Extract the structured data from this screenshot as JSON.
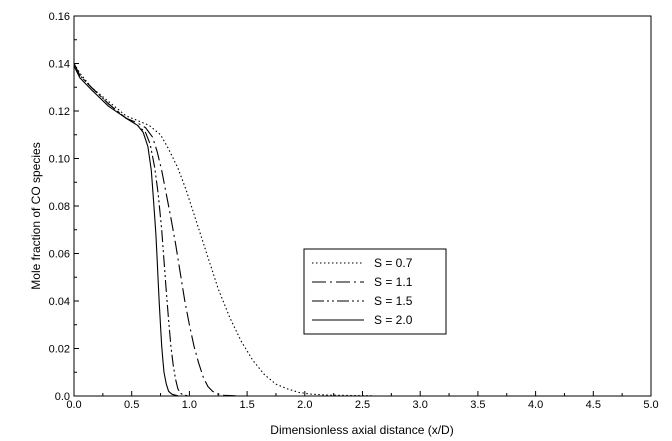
{
  "chart_data": {
    "type": "line",
    "title": "",
    "xlabel": "Dimensionless axial distance (x/D)",
    "ylabel": "Mole fraction of CO species",
    "xlim": [
      0.0,
      5.0
    ],
    "ylim": [
      0.0,
      0.16
    ],
    "x_ticks": [
      "0.0",
      "0.5",
      "1.0",
      "1.5",
      "2.0",
      "2.5",
      "3.0",
      "3.5",
      "4.0",
      "4.5",
      "5.0"
    ],
    "y_ticks": [
      "0.0",
      "0.02",
      "0.04",
      "0.06",
      "0.08",
      "0.10",
      "0.12",
      "0.14",
      "0.16"
    ],
    "grid": false,
    "legend_position": "center-right",
    "series": [
      {
        "name": "S = 0.7",
        "dash": "dotted",
        "x": [
          0.0,
          0.05,
          0.15,
          0.3,
          0.45,
          0.55,
          0.65,
          0.75,
          0.82,
          0.9,
          0.97,
          1.05,
          1.15,
          1.25,
          1.35,
          1.45,
          1.55,
          1.65,
          1.75,
          1.85,
          1.95,
          2.05,
          2.2,
          2.4,
          2.6
        ],
        "y": [
          0.14,
          0.136,
          0.13,
          0.124,
          0.118,
          0.116,
          0.114,
          0.11,
          0.104,
          0.096,
          0.087,
          0.075,
          0.06,
          0.045,
          0.033,
          0.023,
          0.015,
          0.009,
          0.005,
          0.003,
          0.0015,
          0.0008,
          0.0004,
          0.0002,
          0.0001
        ]
      },
      {
        "name": "S = 1.1",
        "dash": "dash-dot",
        "x": [
          0.0,
          0.05,
          0.15,
          0.3,
          0.45,
          0.55,
          0.62,
          0.68,
          0.72,
          0.76,
          0.8,
          0.84,
          0.88,
          0.92,
          0.96,
          1.0,
          1.04,
          1.08,
          1.12,
          1.16,
          1.2,
          1.25,
          1.3,
          1.4
        ],
        "y": [
          0.14,
          0.135,
          0.13,
          0.123,
          0.117,
          0.115,
          0.113,
          0.109,
          0.103,
          0.095,
          0.085,
          0.075,
          0.064,
          0.052,
          0.04,
          0.03,
          0.021,
          0.014,
          0.008,
          0.004,
          0.002,
          0.0008,
          0.0003,
          0.0001
        ]
      },
      {
        "name": "S = 1.5",
        "dash": "dash-dot-dot",
        "x": [
          0.0,
          0.05,
          0.15,
          0.3,
          0.45,
          0.55,
          0.62,
          0.66,
          0.7,
          0.73,
          0.76,
          0.78,
          0.8,
          0.82,
          0.84,
          0.86,
          0.88,
          0.9,
          0.92,
          0.95,
          1.0
        ],
        "y": [
          0.14,
          0.135,
          0.13,
          0.123,
          0.117,
          0.114,
          0.111,
          0.106,
          0.096,
          0.085,
          0.07,
          0.057,
          0.044,
          0.032,
          0.021,
          0.013,
          0.007,
          0.003,
          0.0012,
          0.0004,
          0.0001
        ]
      },
      {
        "name": "S = 2.0",
        "dash": "solid",
        "x": [
          0.0,
          0.05,
          0.15,
          0.3,
          0.45,
          0.55,
          0.6,
          0.64,
          0.67,
          0.69,
          0.71,
          0.72,
          0.73,
          0.74,
          0.75,
          0.76,
          0.77,
          0.78,
          0.8,
          0.82,
          0.85,
          0.9
        ],
        "y": [
          0.139,
          0.134,
          0.129,
          0.122,
          0.117,
          0.114,
          0.111,
          0.105,
          0.095,
          0.082,
          0.068,
          0.058,
          0.048,
          0.038,
          0.029,
          0.021,
          0.015,
          0.01,
          0.005,
          0.002,
          0.0007,
          0.0001
        ]
      }
    ]
  }
}
